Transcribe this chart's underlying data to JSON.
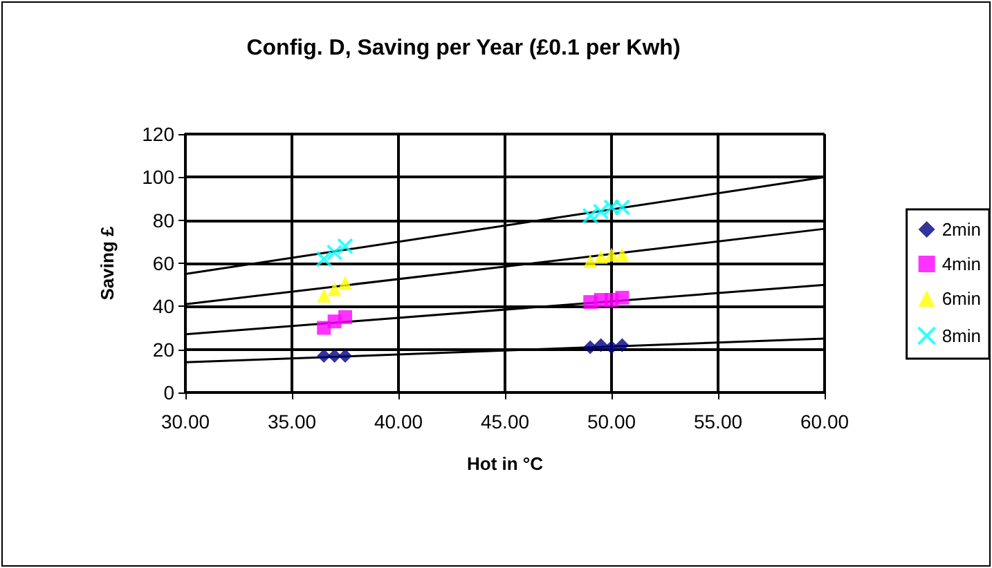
{
  "chart_data": {
    "type": "scatter",
    "title": "Config. D, Saving per Year (£0.1 per Kwh)",
    "xlabel": "Hot in °C",
    "ylabel": "Saving £",
    "xlim": [
      30,
      60
    ],
    "xticks": [
      {
        "value": 30,
        "label": "30.00"
      },
      {
        "value": 35,
        "label": "35.00"
      },
      {
        "value": 40,
        "label": "40.00"
      },
      {
        "value": 45,
        "label": "45.00"
      },
      {
        "value": 50,
        "label": "50.00"
      },
      {
        "value": 55,
        "label": "55.00"
      },
      {
        "value": 60,
        "label": "60.00"
      }
    ],
    "ylim": [
      0,
      120
    ],
    "yticks": [
      0,
      20,
      40,
      60,
      80,
      100,
      120
    ],
    "grid": true,
    "legend": "right",
    "series": [
      {
        "name": "2min",
        "color": "#000080",
        "marker": "diamond",
        "x": [
          36.5,
          37,
          37.5,
          49,
          49.5,
          50,
          50.5
        ],
        "values": [
          17,
          17,
          17,
          21,
          22,
          21,
          22
        ]
      },
      {
        "name": "4min",
        "color": "#ff00ff",
        "marker": "square",
        "x": [
          36.5,
          37,
          37.5,
          49,
          49.5,
          50,
          50.5
        ],
        "values": [
          30,
          33,
          35,
          42,
          43,
          43,
          44
        ]
      },
      {
        "name": "6min",
        "color": "#ffff00",
        "marker": "triangle",
        "x": [
          36.5,
          37,
          37.5,
          49,
          49.5,
          50,
          50.5
        ],
        "values": [
          45,
          48,
          51,
          61,
          63,
          64,
          64
        ]
      },
      {
        "name": "8min",
        "color": "#00ffff",
        "marker": "cross",
        "x": [
          36.5,
          37,
          37.5,
          49,
          49.5,
          50,
          50.5
        ],
        "values": [
          62,
          65,
          68,
          82,
          84,
          86,
          86
        ]
      },
      {
        "type": "line",
        "color": "#000000",
        "x": [
          30,
          60
        ],
        "values": [
          14,
          25
        ]
      },
      {
        "type": "line",
        "color": "#000000",
        "x": [
          30,
          60
        ],
        "values": [
          27,
          50
        ]
      },
      {
        "type": "line",
        "color": "#000000",
        "x": [
          30,
          60
        ],
        "values": [
          41,
          76
        ]
      },
      {
        "type": "line",
        "color": "#000000",
        "x": [
          30,
          60
        ],
        "values": [
          55,
          100
        ]
      }
    ]
  }
}
